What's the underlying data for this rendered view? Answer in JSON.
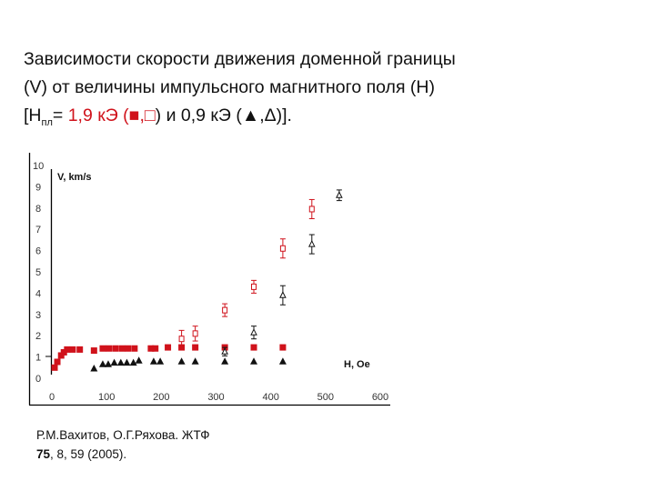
{
  "title": {
    "line1": "Зависимости скорости движения доменной границы",
    "line2": "(V) от величины импульсного магнитного поля (H)",
    "line3_prefix": "[H",
    "line3_sub": "пл",
    "line3_eq": "= ",
    "line3_red": "1,9 кЭ (",
    "line3_red_sym1": "■",
    "line3_red_comma": ",",
    "line3_red_sym2": "□",
    "line3_close1": ") и 0,9 кЭ (",
    "line3_sym3": "▲",
    "line3_comma2": ",",
    "line3_sym4": "Δ",
    "line3_end": ")]."
  },
  "citation": {
    "line1": "Р.М.Вахитов, О.Г.Ряхова. ЖТФ",
    "volume": "75",
    "rest": ", 8, 59 (2005)."
  },
  "colors": {
    "red": "#d0121b",
    "black": "#111111",
    "axis": "#000000"
  },
  "chart_data": {
    "type": "scatter",
    "title": "",
    "xlabel": "H, Oe",
    "ylabel": "V, km/s",
    "xlim": [
      0,
      600
    ],
    "ylim": [
      0,
      10
    ],
    "xticks": [
      0,
      100,
      200,
      300,
      400,
      500,
      600
    ],
    "yticks": [
      0,
      1,
      2,
      3,
      4,
      5,
      6,
      7,
      8,
      9,
      10
    ],
    "grid": false,
    "legend": "in title: ■,□ = Hпл 1,9 кЭ; ▲,Δ = Hпл 0,9 кЭ",
    "series": [
      {
        "name": "Hпл=1,9 кЭ (filled squares)",
        "marker": "square-filled",
        "color": "#d0121b",
        "x": [
          5,
          10,
          17,
          22,
          28,
          38,
          51,
          77,
          93,
          104,
          116,
          128,
          139,
          151,
          181,
          189,
          212,
          237,
          262,
          316,
          369,
          422
        ],
        "y": [
          0.5,
          0.77,
          1.07,
          1.22,
          1.35,
          1.35,
          1.35,
          1.3,
          1.4,
          1.4,
          1.4,
          1.4,
          1.4,
          1.4,
          1.4,
          1.4,
          1.45,
          1.45,
          1.45,
          1.45,
          1.45,
          1.45
        ]
      },
      {
        "name": "Hпл=0,9 кЭ (filled triangles)",
        "marker": "triangle-filled",
        "color": "#111111",
        "x": [
          77,
          93,
          103,
          114,
          126,
          137,
          149,
          159,
          186,
          198,
          237,
          262,
          316,
          369,
          422
        ],
        "y": [
          0.45,
          0.65,
          0.65,
          0.72,
          0.72,
          0.72,
          0.72,
          0.82,
          0.78,
          0.78,
          0.78,
          0.78,
          0.78,
          0.78,
          0.78
        ]
      },
      {
        "name": "Hпл=1,9 кЭ (open squares, with error bars)",
        "marker": "square-open",
        "color": "#d0121b",
        "x": [
          237,
          262,
          316,
          369,
          422,
          475
        ],
        "y": [
          1.85,
          2.1,
          3.2,
          4.3,
          6.1,
          7.95
        ],
        "err": [
          0.4,
          0.35,
          0.3,
          0.3,
          0.45,
          0.45
        ]
      },
      {
        "name": "Hпл=0,9 кЭ (open triangles, with error bars)",
        "marker": "triangle-open",
        "color": "#111111",
        "x": [
          316,
          369,
          422,
          475,
          525
        ],
        "y": [
          1.25,
          2.15,
          3.9,
          6.3,
          8.6
        ],
        "err": [
          0.2,
          0.3,
          0.45,
          0.45,
          0.25
        ]
      }
    ]
  }
}
